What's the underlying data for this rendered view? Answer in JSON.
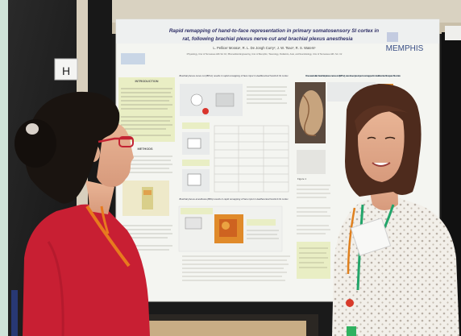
{
  "board_sign": "H",
  "poster": {
    "title_line1": "Rapid remapping of hand-to-face representation in primary somatosensory SI cortex in",
    "title_line2": "rat, following brachial plexus nerve cut and brachial plexus anesthesia",
    "authors": "L. Pellicer Morata¹, R. L. De Jongh Curry², J. W. Tsao³, R. S. Waters¹",
    "affiliations": "¹Physiology, Univ of Tennessee Hlth Sci Ctr; ²Biomedical Engineering, Univ of Memphis; ³Neurology, Pediatrics, Anat, and Neurobiology, Univ of Tennessee Hlth. Sci. Ctr",
    "logo_text": "MEMPHIS",
    "intro_heading": "INTRODUCTION",
    "methods_heading": "METHODS",
    "section1_heading": "Brachial plexus nerve cut (BPnc) results in rapid remapping of face input in deafferented forelimb SI cortex",
    "section2_heading": "Brachial plexus anesthesia (BPA) results in rapid remapping of face input in deafferented forelimb SI cortex",
    "right_heading": "One week after brachial plexus nerve cut (BPnc), new lower jaw input is remapped in deafferented forepaw SI cortex",
    "figure_labels": [
      "Figure 1",
      "Figure 2",
      "Figure 3"
    ]
  },
  "colors": {
    "wall": "#1d1d1d",
    "poster": "#f4f5f1",
    "highlight": "#e9eec4",
    "left_shirt": "#c81f33",
    "lanyard": "#e77a1e",
    "green_lanyard": "#22a56a"
  }
}
